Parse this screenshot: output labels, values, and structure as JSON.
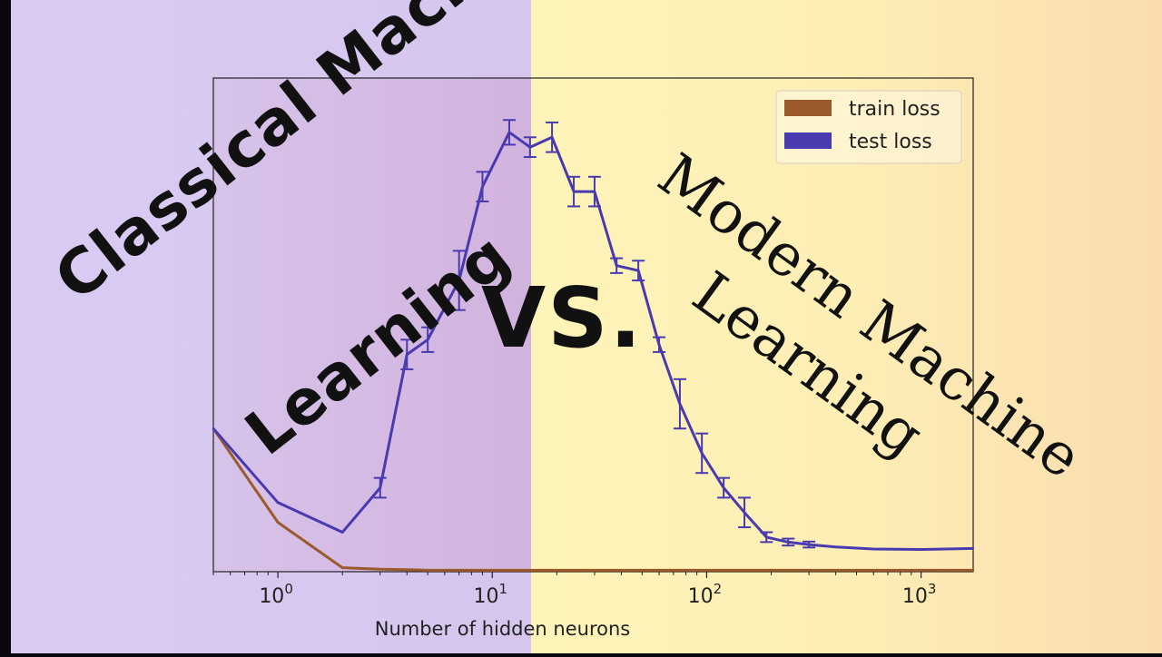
{
  "overlay": {
    "left_title_line1": "Classical Machine",
    "left_title_line2": "Learning",
    "vs": "VS.",
    "right_title_line1": "Modern Machine",
    "right_title_line2": "Learning"
  },
  "colors": {
    "left_panel": "#d6c8ef",
    "left_panel_dark": "#d3b8e2",
    "right_panel": "#fdf2b8",
    "right_panel_far": "#fbdfb0",
    "train_loss": "#9a5a2c",
    "test_loss": "#4a3aaf"
  },
  "chart_data": {
    "type": "line",
    "title": "",
    "xlabel": "Number of hidden neurons",
    "ylabel": "",
    "x_scale": "log",
    "xlim": [
      0.5,
      1750
    ],
    "ylim": [
      0,
      1
    ],
    "y_ticks_shown": false,
    "x_ticks": [
      {
        "value": 1,
        "base": "10",
        "exp": "0"
      },
      {
        "value": 10,
        "base": "10",
        "exp": "1"
      },
      {
        "value": 100,
        "base": "10",
        "exp": "2"
      },
      {
        "value": 1000,
        "base": "10",
        "exp": "3"
      }
    ],
    "legend_position": "top-right",
    "series": [
      {
        "name": "train loss",
        "color": "#9a5a2c",
        "x": [
          0.5,
          1,
          2,
          3,
          4,
          5,
          7,
          9,
          12,
          15,
          19,
          24,
          30,
          38,
          48,
          60,
          75,
          95,
          120,
          150,
          190,
          240,
          300,
          400,
          600,
          1000,
          1750
        ],
        "y": [
          0.29,
          0.1,
          0.008,
          0.005,
          0.004,
          0.003,
          0.003,
          0.003,
          0.003,
          0.003,
          0.003,
          0.003,
          0.003,
          0.003,
          0.003,
          0.003,
          0.003,
          0.003,
          0.003,
          0.003,
          0.003,
          0.003,
          0.003,
          0.003,
          0.003,
          0.003,
          0.003
        ],
        "err": []
      },
      {
        "name": "test loss",
        "color": "#4a3aaf",
        "x": [
          0.5,
          1,
          2,
          3,
          4,
          5,
          7,
          9,
          12,
          15,
          19,
          24,
          30,
          38,
          48,
          60,
          75,
          95,
          120,
          150,
          190,
          240,
          300,
          400,
          600,
          1000,
          1750
        ],
        "y": [
          0.29,
          0.14,
          0.08,
          0.17,
          0.44,
          0.47,
          0.59,
          0.78,
          0.89,
          0.86,
          0.88,
          0.77,
          0.77,
          0.62,
          0.61,
          0.46,
          0.34,
          0.24,
          0.17,
          0.12,
          0.07,
          0.06,
          0.055,
          0.05,
          0.046,
          0.045,
          0.047
        ],
        "err": [
          0,
          0,
          0,
          0.02,
          0.03,
          0.025,
          0.06,
          0.03,
          0.025,
          0.02,
          0.03,
          0.03,
          0.03,
          0.015,
          0.02,
          0.015,
          0.05,
          0.04,
          0.02,
          0.03,
          0.01,
          0.007,
          0.006,
          0,
          0,
          0,
          0
        ]
      }
    ]
  }
}
